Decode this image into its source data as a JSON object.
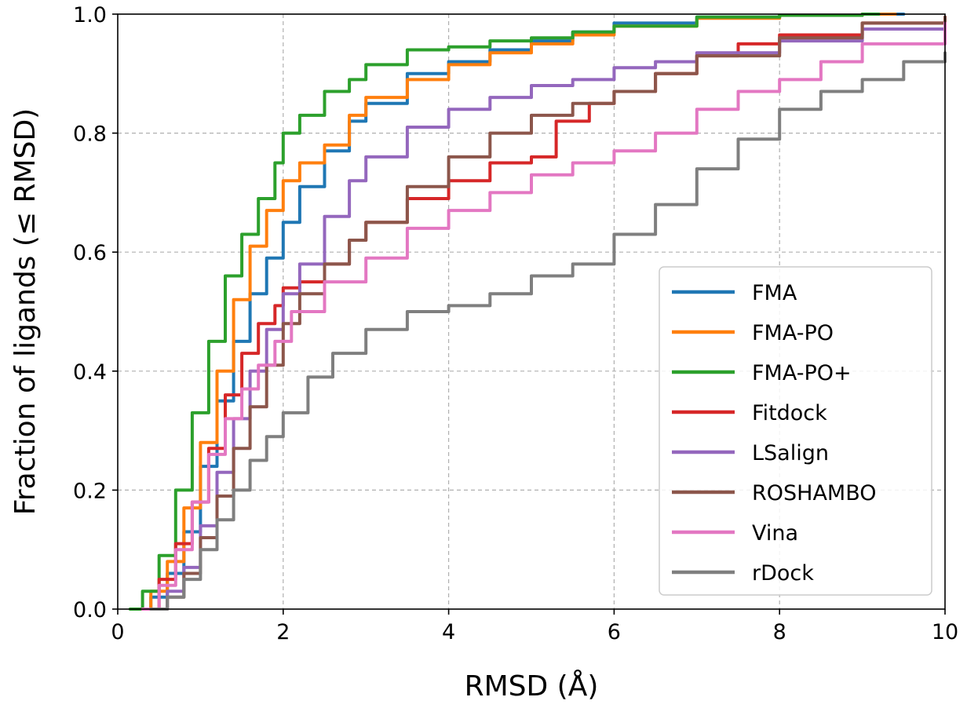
{
  "chart_data": {
    "type": "line",
    "title": "",
    "xlabel": "RMSD (Å)",
    "ylabel": "Fraction of ligands (≤ RMSD)",
    "xlim": [
      0,
      10
    ],
    "ylim": [
      0,
      1.0
    ],
    "xticks": [
      0,
      2,
      4,
      6,
      8,
      10
    ],
    "yticks": [
      0.0,
      0.2,
      0.4,
      0.6,
      0.8,
      1.0
    ],
    "xtick_labels": [
      "0",
      "2",
      "4",
      "6",
      "8",
      "10"
    ],
    "ytick_labels": [
      "0.0",
      "0.2",
      "0.4",
      "0.6",
      "0.8",
      "1.0"
    ],
    "grid": true,
    "legend_position": "lower-right",
    "series": [
      {
        "name": "FMA",
        "color": "#1f77b4",
        "x": [
          0.2,
          0.4,
          0.6,
          0.8,
          1.0,
          1.2,
          1.4,
          1.6,
          1.8,
          2.0,
          2.2,
          2.5,
          2.8,
          3.0,
          3.5,
          4.0,
          4.5,
          5.0,
          5.5,
          6.0,
          7.0,
          8.0,
          9.0,
          9.5
        ],
        "y": [
          0.0,
          0.02,
          0.06,
          0.13,
          0.24,
          0.35,
          0.45,
          0.53,
          0.59,
          0.65,
          0.71,
          0.77,
          0.82,
          0.85,
          0.9,
          0.92,
          0.94,
          0.955,
          0.97,
          0.985,
          0.995,
          0.998,
          1.0,
          1.0
        ]
      },
      {
        "name": "FMA-PO",
        "color": "#ff7f0e",
        "x": [
          0.2,
          0.4,
          0.6,
          0.8,
          1.0,
          1.2,
          1.4,
          1.6,
          1.8,
          2.0,
          2.2,
          2.5,
          2.8,
          3.0,
          3.5,
          4.0,
          4.5,
          5.0,
          5.5,
          6.0,
          7.0,
          8.0,
          9.0,
          9.4
        ],
        "y": [
          0.0,
          0.03,
          0.08,
          0.17,
          0.28,
          0.4,
          0.52,
          0.61,
          0.67,
          0.72,
          0.75,
          0.78,
          0.83,
          0.86,
          0.89,
          0.915,
          0.935,
          0.95,
          0.965,
          0.98,
          0.993,
          0.998,
          1.0,
          1.0
        ]
      },
      {
        "name": "FMA-PO+",
        "color": "#2ca02c",
        "x": [
          0.15,
          0.3,
          0.5,
          0.7,
          0.9,
          1.1,
          1.3,
          1.5,
          1.7,
          1.9,
          2.0,
          2.2,
          2.5,
          2.8,
          3.0,
          3.5,
          4.0,
          4.5,
          5.0,
          5.5,
          6.0,
          7.0,
          8.0,
          9.0,
          9.2
        ],
        "y": [
          0.0,
          0.03,
          0.09,
          0.2,
          0.33,
          0.45,
          0.56,
          0.63,
          0.69,
          0.75,
          0.8,
          0.83,
          0.87,
          0.89,
          0.915,
          0.94,
          0.945,
          0.955,
          0.96,
          0.97,
          0.98,
          0.995,
          0.998,
          1.0,
          1.0
        ]
      },
      {
        "name": "Fitdock",
        "color": "#d62728",
        "x": [
          0.3,
          0.5,
          0.7,
          0.9,
          1.1,
          1.3,
          1.5,
          1.7,
          1.9,
          2.0,
          2.2,
          2.5,
          2.8,
          3.0,
          3.5,
          4.0,
          4.5,
          5.0,
          5.3,
          5.7,
          6.0,
          6.5,
          7.0,
          7.5,
          8.0,
          9.0,
          10.0
        ],
        "y": [
          0.0,
          0.05,
          0.11,
          0.18,
          0.27,
          0.36,
          0.43,
          0.48,
          0.51,
          0.54,
          0.55,
          0.58,
          0.62,
          0.65,
          0.69,
          0.72,
          0.75,
          0.76,
          0.82,
          0.85,
          0.87,
          0.9,
          0.93,
          0.95,
          0.965,
          0.985,
          0.995
        ]
      },
      {
        "name": "LSalign",
        "color": "#9467bd",
        "x": [
          0.4,
          0.6,
          0.8,
          1.0,
          1.2,
          1.4,
          1.6,
          1.8,
          2.0,
          2.2,
          2.5,
          2.8,
          3.0,
          3.5,
          4.0,
          4.5,
          5.0,
          5.5,
          6.0,
          6.5,
          7.0,
          8.0,
          9.0,
          10.0
        ],
        "y": [
          0.0,
          0.03,
          0.07,
          0.14,
          0.23,
          0.32,
          0.4,
          0.47,
          0.53,
          0.58,
          0.66,
          0.72,
          0.76,
          0.81,
          0.84,
          0.86,
          0.88,
          0.89,
          0.91,
          0.92,
          0.935,
          0.955,
          0.975,
          0.99
        ]
      },
      {
        "name": "ROSHAMBO",
        "color": "#8c564b",
        "x": [
          0.4,
          0.6,
          0.8,
          1.0,
          1.2,
          1.4,
          1.6,
          1.8,
          2.0,
          2.2,
          2.5,
          2.8,
          3.0,
          3.5,
          4.0,
          4.5,
          5.0,
          5.5,
          6.0,
          6.5,
          7.0,
          8.0,
          9.0,
          10.0
        ],
        "y": [
          0.0,
          0.02,
          0.06,
          0.12,
          0.19,
          0.27,
          0.34,
          0.41,
          0.48,
          0.53,
          0.58,
          0.62,
          0.65,
          0.71,
          0.76,
          0.8,
          0.83,
          0.85,
          0.87,
          0.9,
          0.93,
          0.96,
          0.985,
          0.995
        ]
      },
      {
        "name": "Vina",
        "color": "#e377c2",
        "x": [
          0.3,
          0.5,
          0.7,
          0.9,
          1.1,
          1.3,
          1.5,
          1.7,
          1.9,
          2.1,
          2.5,
          3.0,
          3.5,
          4.0,
          4.5,
          5.0,
          5.5,
          6.0,
          6.5,
          7.0,
          7.5,
          8.0,
          8.5,
          9.0,
          10.0
        ],
        "y": [
          0.0,
          0.04,
          0.1,
          0.18,
          0.26,
          0.32,
          0.37,
          0.41,
          0.45,
          0.5,
          0.55,
          0.59,
          0.64,
          0.67,
          0.7,
          0.73,
          0.75,
          0.77,
          0.8,
          0.84,
          0.87,
          0.89,
          0.92,
          0.95,
          0.985
        ]
      },
      {
        "name": "rDock",
        "color": "#7f7f7f",
        "x": [
          0.4,
          0.6,
          0.8,
          1.0,
          1.2,
          1.4,
          1.6,
          1.8,
          2.0,
          2.3,
          2.6,
          3.0,
          3.5,
          4.0,
          4.5,
          5.0,
          5.5,
          6.0,
          6.5,
          7.0,
          7.5,
          8.0,
          8.5,
          9.0,
          9.5,
          10.0
        ],
        "y": [
          0.0,
          0.02,
          0.05,
          0.1,
          0.15,
          0.2,
          0.25,
          0.29,
          0.33,
          0.39,
          0.43,
          0.47,
          0.5,
          0.51,
          0.53,
          0.56,
          0.58,
          0.63,
          0.68,
          0.74,
          0.79,
          0.84,
          0.87,
          0.89,
          0.92,
          0.935
        ]
      }
    ]
  }
}
